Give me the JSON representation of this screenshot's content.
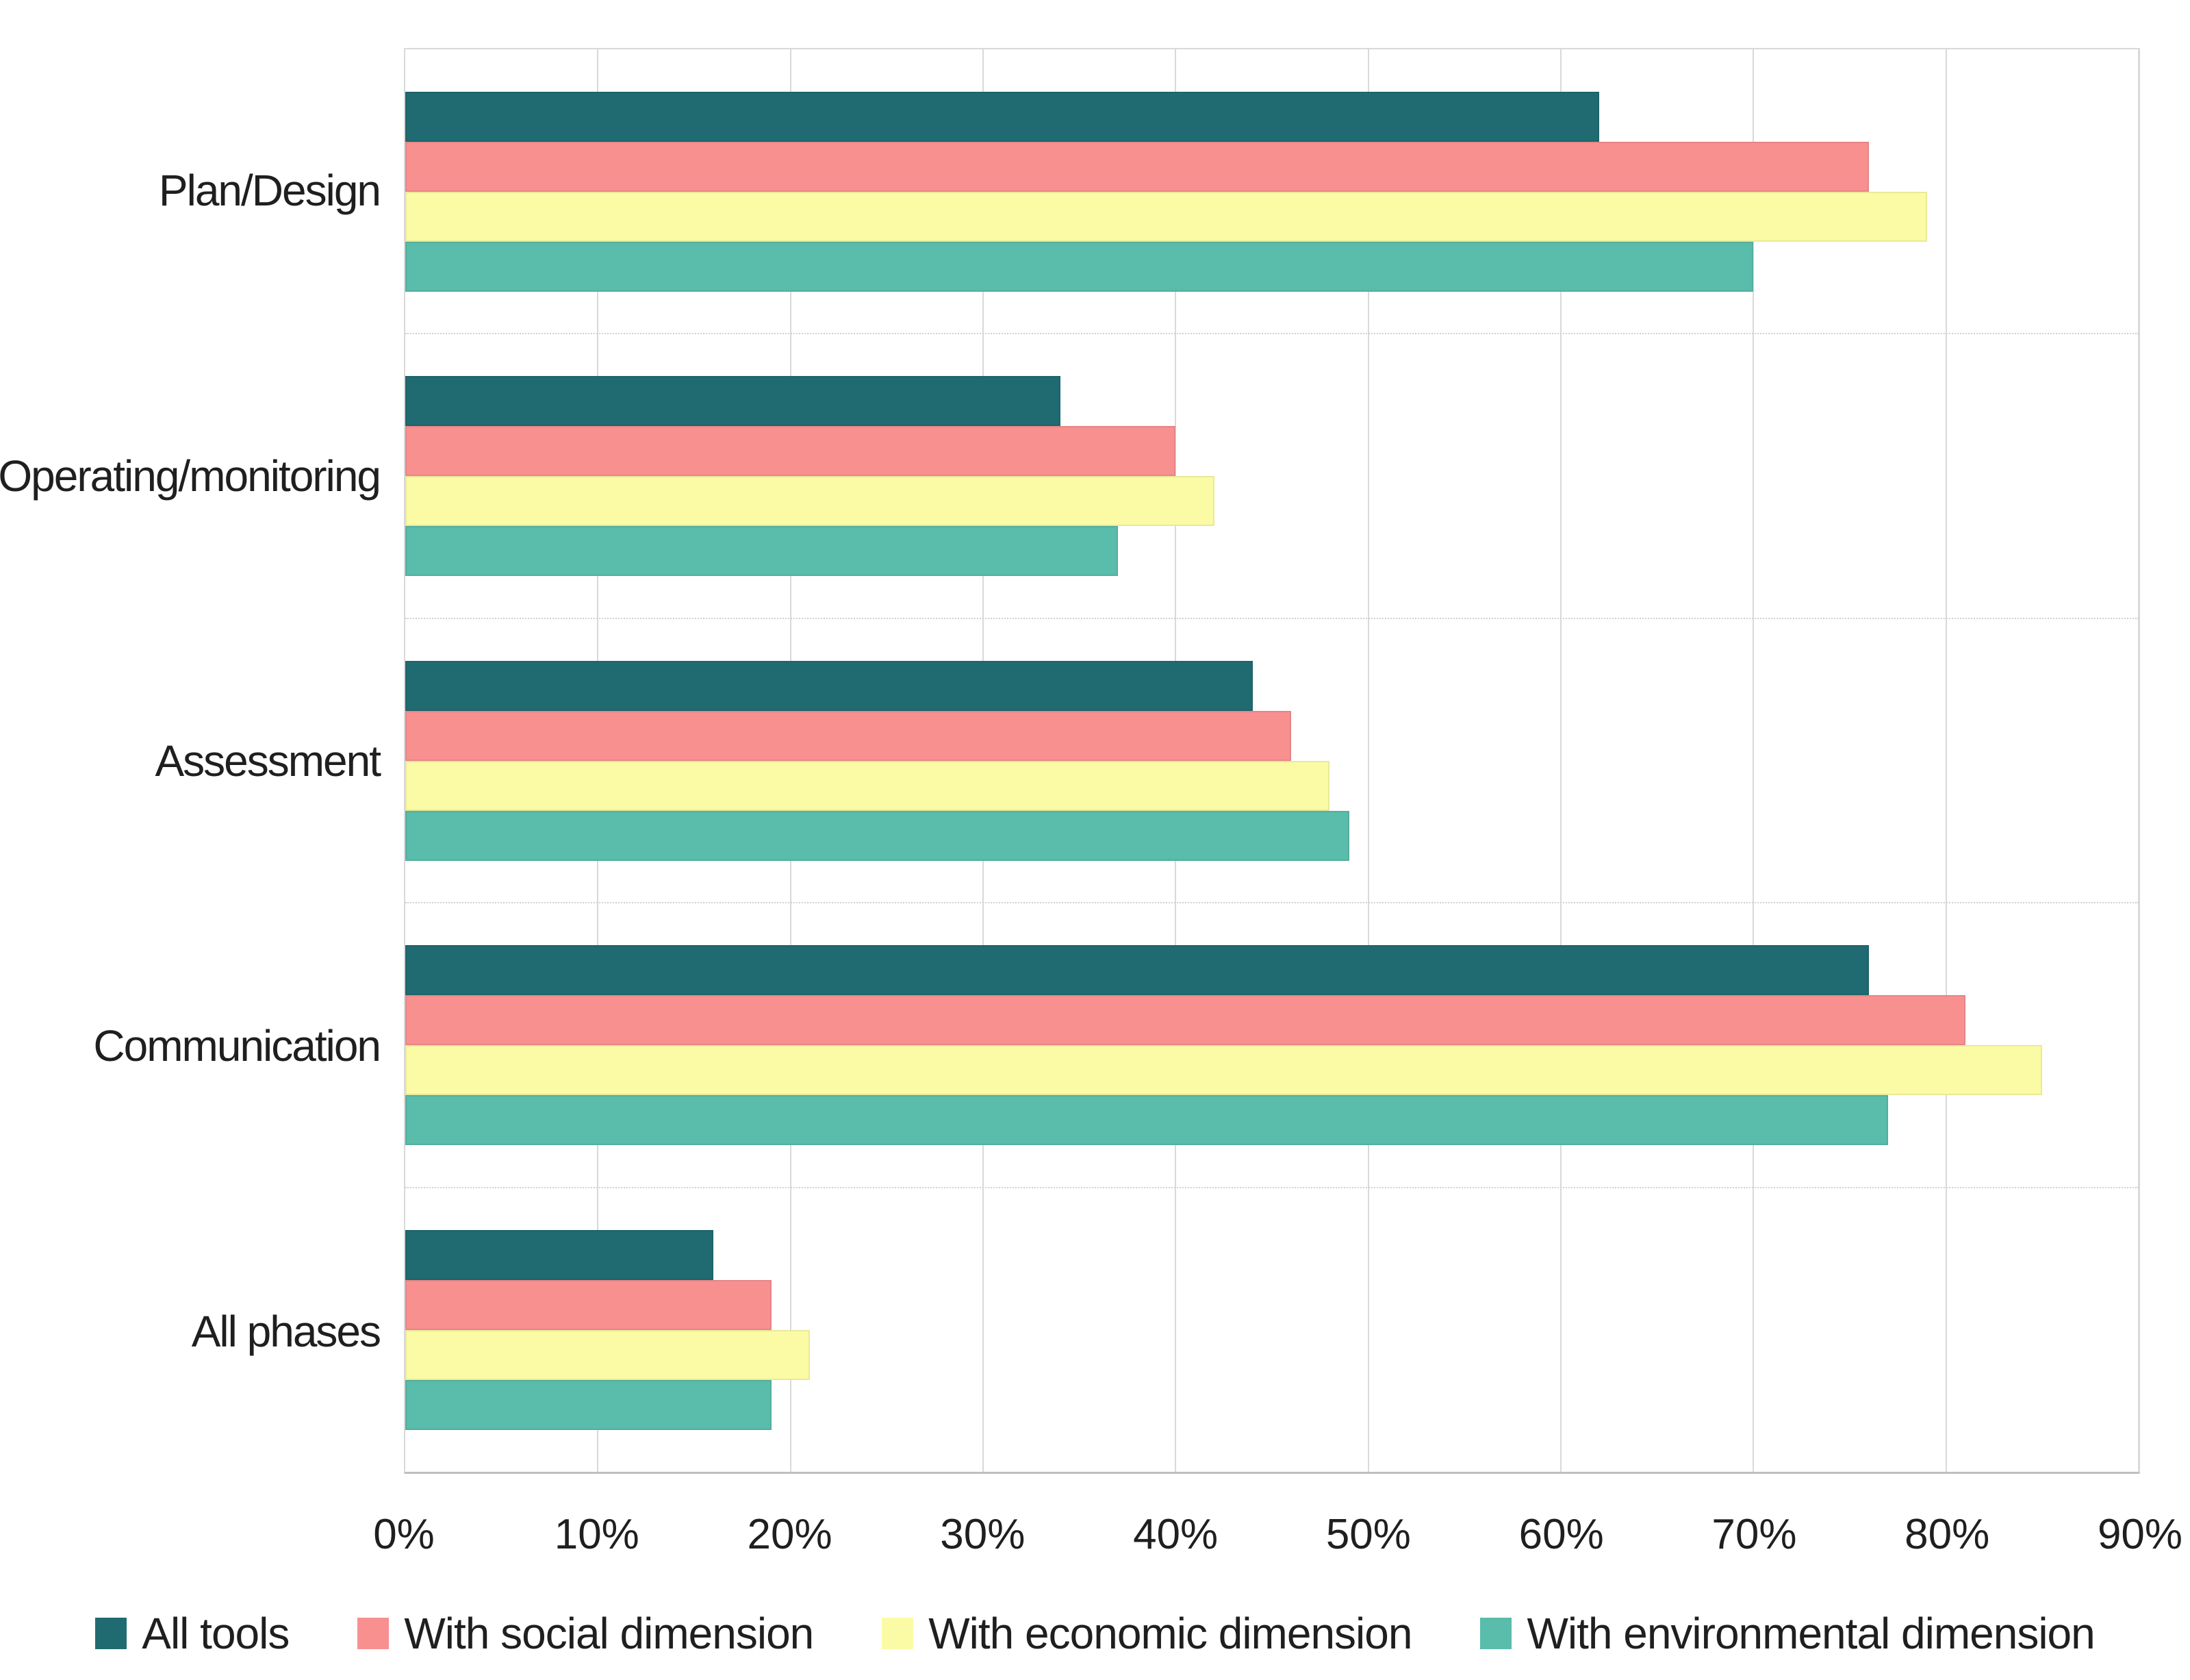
{
  "chart_data": {
    "type": "bar",
    "orientation": "horizontal",
    "title": "",
    "categories": [
      "Plan/Design",
      "Operating/monitoring",
      "Assessment",
      "Communication",
      "All phases"
    ],
    "series": [
      {
        "name": "All tools",
        "color": "#206b71",
        "values": [
          62,
          34,
          44,
          76,
          16
        ]
      },
      {
        "name": "With social dimension",
        "color": "#f89090",
        "values": [
          76,
          40,
          46,
          81,
          19
        ]
      },
      {
        "name": "With economic dimension",
        "color": "#fbfba5",
        "values": [
          79,
          42,
          48,
          85,
          21
        ]
      },
      {
        "name": "With environmental dimension",
        "color": "#5abcab",
        "values": [
          70,
          37,
          49,
          77,
          19
        ]
      }
    ],
    "x_axis": {
      "min": 0,
      "max": 90,
      "tick_step": 10,
      "unit": "%",
      "tick_labels": [
        "0%",
        "10%",
        "20%",
        "30%",
        "40%",
        "50%",
        "60%",
        "70%",
        "80%",
        "90%"
      ]
    },
    "grid": "vertical-major-on",
    "legend_position": "bottom"
  },
  "style": {
    "gridline_color": "#d9d9d9",
    "axis_line_color": "#bfbfbf",
    "separator_color": "#d0d0d0",
    "text_color": "#1f1f1f",
    "background_color": "#ffffff"
  }
}
